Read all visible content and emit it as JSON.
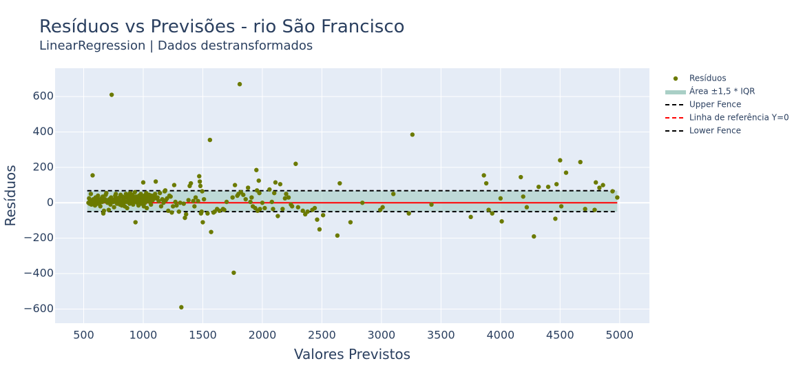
{
  "title": "Resíduos vs Previsões - rio São Francisco",
  "subtitle": "LinearRegression | Dados destransformados",
  "colors": {
    "plot_background": "#e5ecf6",
    "grid": "#ffffff",
    "points": "#6b7a00",
    "band": "#a9cfc6",
    "fence": "#000000",
    "reference": "#ff0000"
  },
  "chart_data": {
    "type": "scatter",
    "xlabel": "Valores Previstos",
    "ylabel": "Resíduos",
    "xlim": [
      260,
      5250
    ],
    "ylim": [
      -680,
      760
    ],
    "x_ticks": [
      "500",
      "1000",
      "1500",
      "2000",
      "2500",
      "3000",
      "3500",
      "4000",
      "4500",
      "5000"
    ],
    "y_ticks": [
      "−600",
      "−400",
      "−200",
      "0",
      "200",
      "400",
      "600"
    ],
    "grid": true,
    "legend_position": "top-right, outside plot",
    "legend": [
      "Resíduos",
      "Área ±1,5 * IQR",
      "Upper Fence",
      "Linha de referência Y=0",
      "Lower Fence"
    ],
    "upper_fence": 68,
    "lower_fence": -50,
    "band_range": [
      -50,
      68
    ],
    "band_x_range": [
      530,
      4980
    ],
    "reference_y": 0,
    "series": [
      {
        "name": "Resíduos",
        "mode": "markers",
        "points": [
          [
            540,
            0
          ],
          [
            545,
            25
          ],
          [
            550,
            -5
          ],
          [
            555,
            10
          ],
          [
            560,
            50
          ],
          [
            565,
            -10
          ],
          [
            570,
            5
          ],
          [
            575,
            155
          ],
          [
            580,
            20
          ],
          [
            585,
            15
          ],
          [
            590,
            0
          ],
          [
            595,
            -15
          ],
          [
            600,
            30
          ],
          [
            605,
            10
          ],
          [
            610,
            25
          ],
          [
            615,
            -5
          ],
          [
            620,
            40
          ],
          [
            625,
            20
          ],
          [
            630,
            10
          ],
          [
            635,
            0
          ],
          [
            640,
            -20
          ],
          [
            645,
            15
          ],
          [
            650,
            25
          ],
          [
            655,
            5
          ],
          [
            660,
            35
          ],
          [
            665,
            -60
          ],
          [
            670,
            -45
          ],
          [
            675,
            10
          ],
          [
            680,
            20
          ],
          [
            685,
            45
          ],
          [
            690,
            55
          ],
          [
            700,
            0
          ],
          [
            705,
            5
          ],
          [
            710,
            -40
          ],
          [
            715,
            20
          ],
          [
            720,
            10
          ],
          [
            725,
            -10
          ],
          [
            730,
            30
          ],
          [
            735,
            610
          ],
          [
            740,
            15
          ],
          [
            750,
            5
          ],
          [
            755,
            -25
          ],
          [
            760,
            20
          ],
          [
            765,
            40
          ],
          [
            770,
            50
          ],
          [
            775,
            10
          ],
          [
            780,
            -5
          ],
          [
            785,
            25
          ],
          [
            790,
            0
          ],
          [
            795,
            20
          ],
          [
            800,
            30
          ],
          [
            805,
            -10
          ],
          [
            810,
            45
          ],
          [
            815,
            5
          ],
          [
            820,
            -15
          ],
          [
            825,
            35
          ],
          [
            830,
            15
          ],
          [
            835,
            0
          ],
          [
            840,
            25
          ],
          [
            845,
            -20
          ],
          [
            850,
            30
          ],
          [
            855,
            50
          ],
          [
            860,
            5
          ],
          [
            865,
            -30
          ],
          [
            870,
            10
          ],
          [
            875,
            40
          ],
          [
            880,
            20
          ],
          [
            885,
            -5
          ],
          [
            890,
            55
          ],
          [
            895,
            15
          ],
          [
            900,
            0
          ],
          [
            905,
            30
          ],
          [
            910,
            45
          ],
          [
            915,
            -10
          ],
          [
            920,
            25
          ],
          [
            925,
            5
          ],
          [
            930,
            60
          ],
          [
            935,
            -110
          ],
          [
            940,
            35
          ],
          [
            945,
            10
          ],
          [
            950,
            0
          ],
          [
            955,
            20
          ],
          [
            960,
            -15
          ],
          [
            965,
            40
          ],
          [
            970,
            25
          ],
          [
            975,
            5
          ],
          [
            980,
            50
          ],
          [
            985,
            -5
          ],
          [
            990,
            30
          ],
          [
            995,
            15
          ],
          [
            1000,
            115
          ],
          [
            1005,
            -20
          ],
          [
            1010,
            40
          ],
          [
            1015,
            0
          ],
          [
            1020,
            20
          ],
          [
            1025,
            55
          ],
          [
            1030,
            -30
          ],
          [
            1035,
            35
          ],
          [
            1040,
            10
          ],
          [
            1045,
            25
          ],
          [
            1050,
            45
          ],
          [
            1055,
            5
          ],
          [
            1060,
            30
          ],
          [
            1065,
            -10
          ],
          [
            1070,
            40
          ],
          [
            1075,
            20
          ],
          [
            1080,
            15
          ],
          [
            1090,
            35
          ],
          [
            1100,
            50
          ],
          [
            1105,
            120
          ],
          [
            1110,
            25
          ],
          [
            1120,
            30
          ],
          [
            1130,
            10
          ],
          [
            1140,
            55
          ],
          [
            1150,
            -20
          ],
          [
            1160,
            20
          ],
          [
            1170,
            0
          ],
          [
            1180,
            65
          ],
          [
            1185,
            70
          ],
          [
            1190,
            15
          ],
          [
            1200,
            25
          ],
          [
            1210,
            -45
          ],
          [
            1220,
            40
          ],
          [
            1230,
            35
          ],
          [
            1240,
            -55
          ],
          [
            1250,
            -20
          ],
          [
            1260,
            100
          ],
          [
            1270,
            5
          ],
          [
            1280,
            -15
          ],
          [
            1300,
            -50
          ],
          [
            1310,
            0
          ],
          [
            1320,
            -590
          ],
          [
            1340,
            -5
          ],
          [
            1350,
            -85
          ],
          [
            1360,
            -65
          ],
          [
            1380,
            15
          ],
          [
            1390,
            95
          ],
          [
            1400,
            110
          ],
          [
            1420,
            10
          ],
          [
            1430,
            -20
          ],
          [
            1440,
            30
          ],
          [
            1460,
            10
          ],
          [
            1470,
            150
          ],
          [
            1475,
            120
          ],
          [
            1480,
            95
          ],
          [
            1485,
            -60
          ],
          [
            1490,
            -50
          ],
          [
            1495,
            65
          ],
          [
            1500,
            -110
          ],
          [
            1510,
            20
          ],
          [
            1540,
            -60
          ],
          [
            1560,
            355
          ],
          [
            1570,
            -165
          ],
          [
            1590,
            -55
          ],
          [
            1600,
            -50
          ],
          [
            1620,
            -35
          ],
          [
            1640,
            -45
          ],
          [
            1670,
            -35
          ],
          [
            1680,
            -40
          ],
          [
            1700,
            5
          ],
          [
            1750,
            30
          ],
          [
            1760,
            -395
          ],
          [
            1770,
            100
          ],
          [
            1790,
            40
          ],
          [
            1800,
            50
          ],
          [
            1810,
            670
          ],
          [
            1820,
            60
          ],
          [
            1840,
            45
          ],
          [
            1860,
            20
          ],
          [
            1880,
            85
          ],
          [
            1900,
            5
          ],
          [
            1910,
            30
          ],
          [
            1920,
            -20
          ],
          [
            1940,
            -30
          ],
          [
            1950,
            185
          ],
          [
            1955,
            70
          ],
          [
            1960,
            -45
          ],
          [
            1970,
            125
          ],
          [
            1975,
            55
          ],
          [
            1980,
            -35
          ],
          [
            2000,
            0
          ],
          [
            2020,
            -30
          ],
          [
            2060,
            75
          ],
          [
            2080,
            5
          ],
          [
            2090,
            -35
          ],
          [
            2100,
            55
          ],
          [
            2110,
            115
          ],
          [
            2130,
            -75
          ],
          [
            2150,
            105
          ],
          [
            2170,
            -35
          ],
          [
            2190,
            25
          ],
          [
            2200,
            50
          ],
          [
            2220,
            30
          ],
          [
            2240,
            -10
          ],
          [
            2250,
            -20
          ],
          [
            2280,
            220
          ],
          [
            2300,
            -25
          ],
          [
            2340,
            -45
          ],
          [
            2360,
            -65
          ],
          [
            2380,
            -50
          ],
          [
            2420,
            -40
          ],
          [
            2440,
            -30
          ],
          [
            2460,
            -95
          ],
          [
            2480,
            -150
          ],
          [
            2510,
            -70
          ],
          [
            2630,
            -185
          ],
          [
            2650,
            110
          ],
          [
            2740,
            -110
          ],
          [
            2840,
            0
          ],
          [
            2990,
            -40
          ],
          [
            3010,
            -25
          ],
          [
            3100,
            50
          ],
          [
            3230,
            -60
          ],
          [
            3260,
            385
          ],
          [
            3420,
            -10
          ],
          [
            3750,
            -80
          ],
          [
            3860,
            155
          ],
          [
            3880,
            110
          ],
          [
            3900,
            -40
          ],
          [
            3930,
            -60
          ],
          [
            4000,
            25
          ],
          [
            4010,
            -105
          ],
          [
            4170,
            145
          ],
          [
            4190,
            35
          ],
          [
            4220,
            -25
          ],
          [
            4280,
            -190
          ],
          [
            4320,
            90
          ],
          [
            4400,
            90
          ],
          [
            4460,
            -90
          ],
          [
            4470,
            105
          ],
          [
            4500,
            240
          ],
          [
            4510,
            -20
          ],
          [
            4550,
            170
          ],
          [
            4670,
            230
          ],
          [
            4710,
            -35
          ],
          [
            4790,
            -40
          ],
          [
            4800,
            115
          ],
          [
            4830,
            85
          ],
          [
            4860,
            100
          ],
          [
            4940,
            65
          ],
          [
            4980,
            30
          ]
        ]
      }
    ]
  }
}
